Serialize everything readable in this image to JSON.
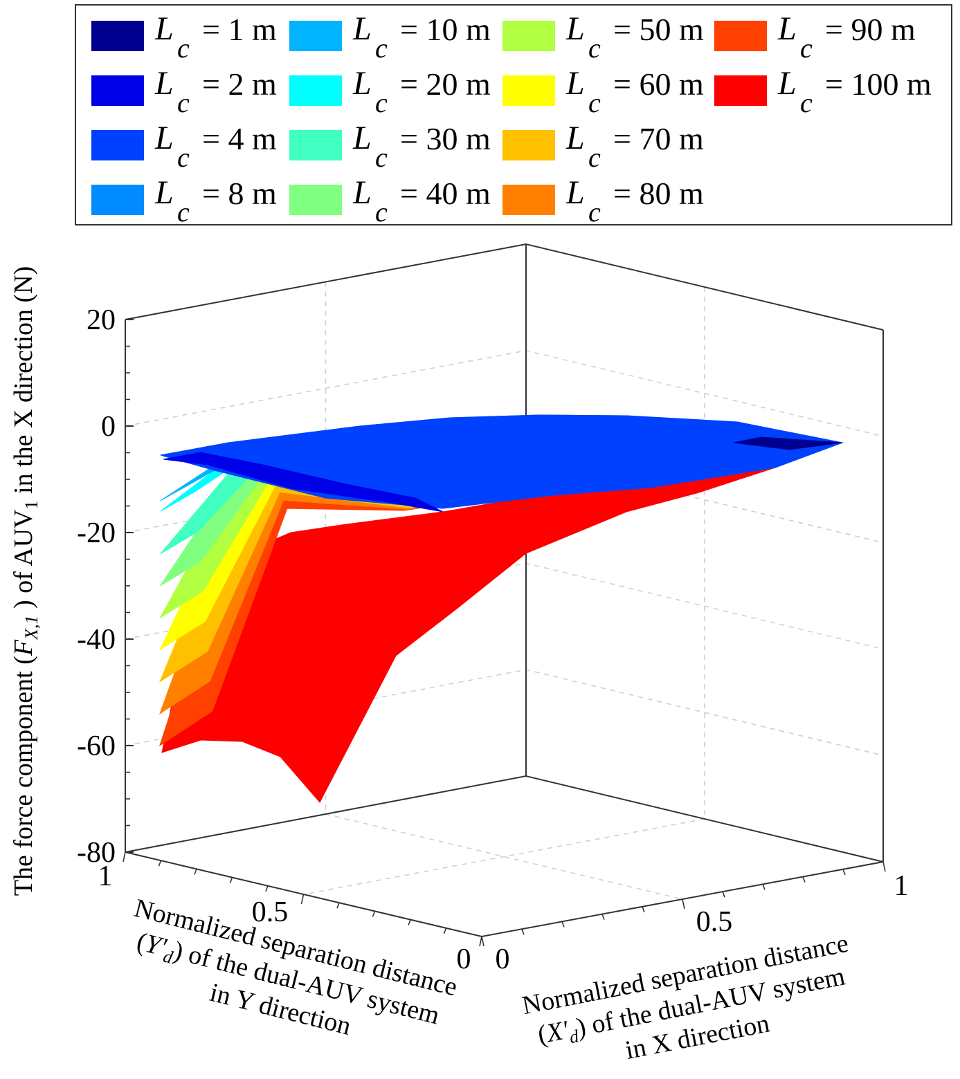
{
  "chart_data": {
    "type": "surface3d",
    "title": "",
    "zlabel": {
      "prefix": "The force component (",
      "symbol": "F",
      "subscript": "X,1",
      "mid": " ) of AUV",
      "mid_sub": "1",
      "suffix": " in the X direction  (N)"
    },
    "xlabel": {
      "line1": "Normalized separation distance",
      "line2_open": "(",
      "line2_var": "X'",
      "line2_sub": "d",
      "line2_rest": ") of the dual-AUV system",
      "line3": "in X direction"
    },
    "ylabel": {
      "line1": "Normalized separation distance",
      "line2_open": "(",
      "line2_var": "Y'",
      "line2_sub": "d",
      "line2_rest": ") of the dual-AUV system",
      "line3": "in Y direction"
    },
    "zlim": [
      -80,
      20
    ],
    "ztick_labels": [
      "20",
      "0",
      "-20",
      "-40",
      "-60",
      "-80"
    ],
    "ztick_values": [
      20,
      0,
      -20,
      -40,
      -60,
      -80
    ],
    "xtick_labels": [
      "0",
      "0.5",
      "1"
    ],
    "ytick_labels": [
      "1",
      "0.5",
      "0"
    ],
    "grid": true,
    "legend_position": "top",
    "legend": {
      "symbol": "L",
      "subscript": "c",
      "items": [
        {
          "label": "= 1 m",
          "color": "#000090"
        },
        {
          "label": "= 2 m",
          "color": "#0000e6"
        },
        {
          "label": "= 4 m",
          "color": "#0040ff"
        },
        {
          "label": "= 8 m",
          "color": "#008cff"
        },
        {
          "label": "= 10 m",
          "color": "#00b4ff"
        },
        {
          "label": "= 20 m",
          "color": "#00ffff"
        },
        {
          "label": "= 30 m",
          "color": "#40ffc0"
        },
        {
          "label": "= 40 m",
          "color": "#80ff80"
        },
        {
          "label": "= 50 m",
          "color": "#b0ff40"
        },
        {
          "label": "= 60 m",
          "color": "#ffff00"
        },
        {
          "label": "= 70 m",
          "color": "#ffc000"
        },
        {
          "label": "= 80 m",
          "color": "#ff8000"
        },
        {
          "label": "= 90 m",
          "color": "#ff4000"
        },
        {
          "label": "= 100 m",
          "color": "#ff0000"
        }
      ]
    },
    "surface_front_edge_min": [
      {
        "Lc": 1,
        "z": -3
      },
      {
        "Lc": 2,
        "z": -6
      },
      {
        "Lc": 4,
        "z": -6
      },
      {
        "Lc": 8,
        "z": -9
      },
      {
        "Lc": 10,
        "z": -14
      },
      {
        "Lc": 20,
        "z": -16
      },
      {
        "Lc": 30,
        "z": -24
      },
      {
        "Lc": 40,
        "z": -30
      },
      {
        "Lc": 50,
        "z": -36
      },
      {
        "Lc": 60,
        "z": -42
      },
      {
        "Lc": 70,
        "z": -48
      },
      {
        "Lc": 80,
        "z": -54
      },
      {
        "Lc": 90,
        "z": -60
      },
      {
        "Lc": 100,
        "z": -70
      }
    ]
  }
}
